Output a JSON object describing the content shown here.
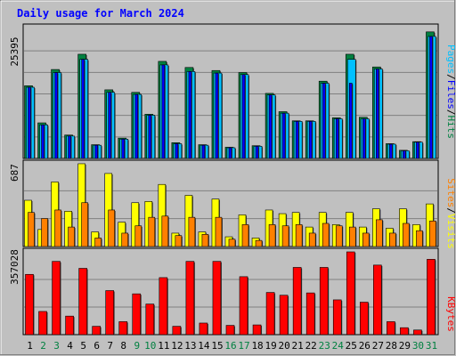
{
  "chart_data": [
    {
      "type": "bar",
      "title": "Daily usage for March 2024",
      "ymax_label": "25395",
      "ylim": [
        0,
        25395
      ],
      "categories": [
        "1",
        "2",
        "3",
        "4",
        "5",
        "6",
        "7",
        "8",
        "9",
        "10",
        "11",
        "12",
        "13",
        "14",
        "15",
        "16",
        "17",
        "18",
        "19",
        "20",
        "21",
        "22",
        "23",
        "24",
        "25",
        "26",
        "27",
        "28",
        "29",
        "30",
        "31"
      ],
      "series": [
        {
          "name": "Hits",
          "color": "#008040",
          "values": [
            14300,
            7000,
            17500,
            4600,
            20500,
            2700,
            13500,
            4000,
            13000,
            8700,
            19100,
            3100,
            17900,
            2700,
            17300,
            2200,
            16900,
            2500,
            12800,
            9200,
            7400,
            7400,
            15200,
            8000,
            20500,
            8100,
            18000,
            2900,
            1600,
            3300,
            24900
          ]
        },
        {
          "name": "Files",
          "color": "#00c0ff",
          "values": [
            14000,
            6600,
            16900,
            4400,
            19500,
            2600,
            13000,
            3800,
            12600,
            8500,
            18400,
            2900,
            17100,
            2600,
            16800,
            2100,
            16500,
            2400,
            12500,
            8900,
            7300,
            7300,
            14800,
            7800,
            19500,
            7800,
            17600,
            2800,
            1500,
            3200,
            24000
          ]
        },
        {
          "name": "Pages",
          "color": "#0000ff",
          "values": [
            14000,
            6600,
            16900,
            4400,
            19500,
            2600,
            13000,
            3800,
            12600,
            8500,
            18400,
            2900,
            17100,
            2600,
            16800,
            2100,
            16500,
            2400,
            12500,
            8900,
            7300,
            7300,
            14800,
            7800,
            14800,
            7800,
            17600,
            2800,
            1500,
            3200,
            24000
          ]
        }
      ]
    },
    {
      "type": "bar",
      "ymax_label": "687",
      "ylim": [
        0,
        687
      ],
      "categories": [
        "1",
        "2",
        "3",
        "4",
        "5",
        "6",
        "7",
        "8",
        "9",
        "10",
        "11",
        "12",
        "13",
        "14",
        "15",
        "16",
        "17",
        "18",
        "19",
        "20",
        "21",
        "22",
        "23",
        "24",
        "25",
        "26",
        "27",
        "28",
        "29",
        "30",
        "31"
      ],
      "series": [
        {
          "name": "Visits",
          "color": "#ffff00",
          "values": [
            380,
            140,
            530,
            290,
            680,
            120,
            600,
            200,
            360,
            370,
            510,
            110,
            420,
            120,
            390,
            80,
            260,
            70,
            300,
            270,
            280,
            160,
            280,
            180,
            280,
            160,
            310,
            150,
            310,
            180,
            350
          ]
        },
        {
          "name": "Sites",
          "color": "#ff8000",
          "values": [
            280,
            230,
            300,
            160,
            360,
            70,
            300,
            110,
            170,
            240,
            250,
            90,
            240,
            100,
            240,
            60,
            180,
            50,
            180,
            170,
            180,
            110,
            190,
            170,
            160,
            110,
            220,
            110,
            190,
            130,
            210
          ]
        }
      ]
    },
    {
      "type": "bar",
      "ymax_label": "357028",
      "ylim": [
        0,
        357028
      ],
      "categories": [
        "1",
        "2",
        "3",
        "4",
        "5",
        "6",
        "7",
        "8",
        "9",
        "10",
        "11",
        "12",
        "13",
        "14",
        "15",
        "16",
        "17",
        "18",
        "19",
        "20",
        "21",
        "22",
        "23",
        "24",
        "25",
        "26",
        "27",
        "28",
        "29",
        "30",
        "31"
      ],
      "series": [
        {
          "name": "KBytes",
          "color": "#ff0000",
          "values": [
            260000,
            100000,
            316000,
            80000,
            286000,
            36000,
            190000,
            56000,
            176000,
            132000,
            246000,
            36000,
            316000,
            50000,
            316000,
            40000,
            250000,
            42000,
            182000,
            170000,
            290000,
            180000,
            290000,
            150000,
            357028,
            140000,
            300000,
            56000,
            30000,
            20000,
            325000
          ]
        }
      ]
    }
  ],
  "legend_top": {
    "pages": "Pages",
    "files": "Files",
    "hits": "Hits",
    "sep": "/"
  },
  "legend_mid": {
    "sites": "Sites",
    "visits": "Visits",
    "sep": "/"
  },
  "legend_bottom": {
    "kbytes": "KBytes"
  },
  "colors": {
    "background": "#c0c0c0",
    "plot": "#c0c0c0",
    "title": "#0000ff",
    "weekday_label": "#000000",
    "weekend_label": "#008040"
  },
  "weekend_days": [
    "2",
    "3",
    "9",
    "10",
    "16",
    "17",
    "23",
    "24",
    "30",
    "31"
  ]
}
